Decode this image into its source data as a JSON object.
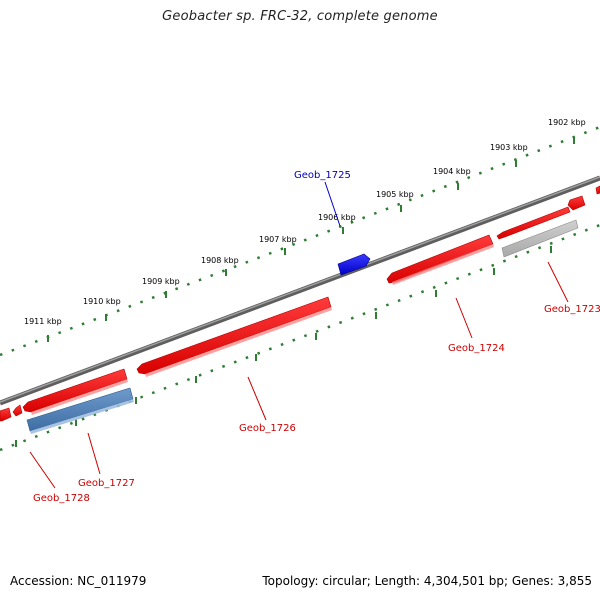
{
  "title": "Geobacter sp. FRC-32, complete genome",
  "footer": {
    "accession": "Accession: NC_011979",
    "summary": "Topology: circular; Length: 4,304,501 bp; Genes: 3,855"
  },
  "colors": {
    "backbone": "#777777",
    "tick": "#2e7d32",
    "gene_red": "#ee1111",
    "gene_blue": "#1010ee",
    "gene_steel": "#4f7fb5",
    "gene_grey": "#b8b8b8",
    "label_red": "#cc0000",
    "label_blue": "#0000bb"
  },
  "scale_labels": [
    "1911 kbp",
    "1910 kbp",
    "1909 kbp",
    "1908 kbp",
    "1907 kbp",
    "1906 kbp",
    "1905 kbp",
    "1904 kbp",
    "1903 kbp",
    "1902 kbp"
  ],
  "genes": [
    {
      "id": "Geob_1723",
      "strand": "-",
      "color": "red"
    },
    {
      "id": "Geob_1724",
      "strand": "-",
      "color": "red"
    },
    {
      "id": "Geob_1725",
      "strand": "+",
      "color": "blue"
    },
    {
      "id": "Geob_1726",
      "strand": "-",
      "color": "red"
    },
    {
      "id": "Geob_1727",
      "strand": "-",
      "color": "red"
    },
    {
      "id": "Geob_1728",
      "strand": "-",
      "color": "red"
    }
  ]
}
